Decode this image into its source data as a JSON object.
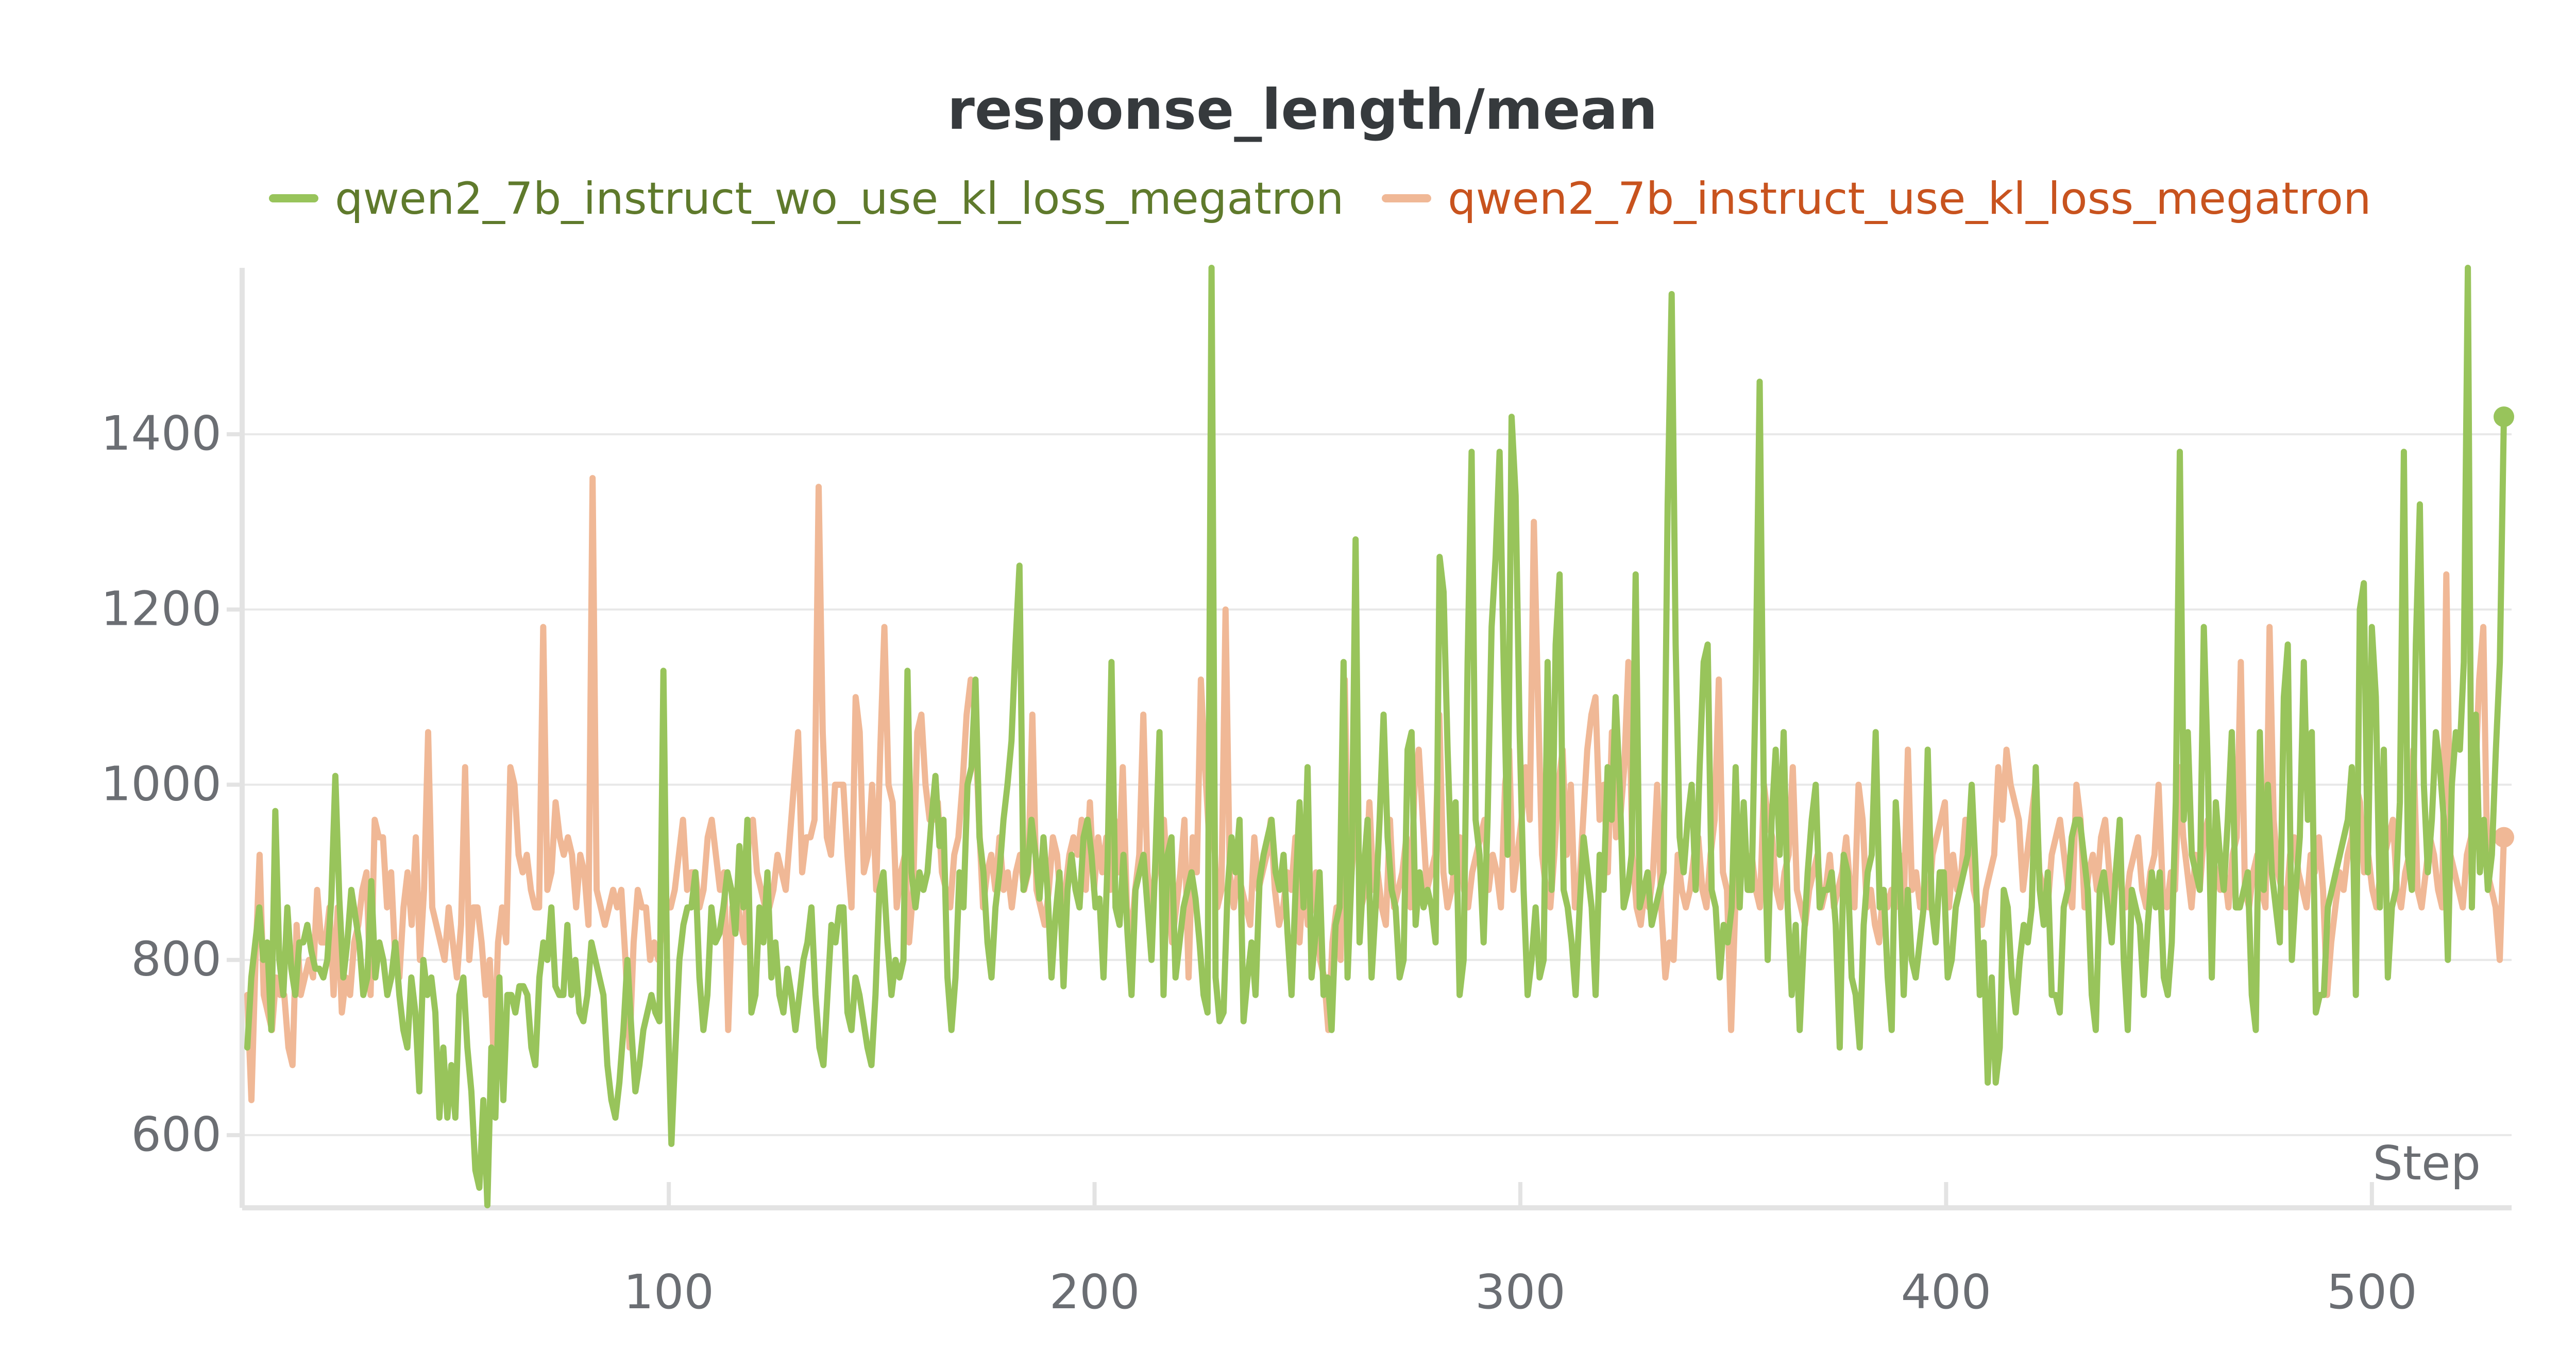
{
  "chart_data": {
    "type": "line",
    "title": "response_length/mean",
    "xlabel": "Step",
    "ylabel": "",
    "xlim": [
      1,
      531
    ],
    "ylim": [
      520,
      1590
    ],
    "x_ticks": [
      100,
      200,
      300,
      400,
      500
    ],
    "y_ticks": [
      600,
      800,
      1000,
      1200,
      1400
    ],
    "grid": true,
    "legend_position": "top",
    "series": [
      {
        "name": "qwen2_7b_instruct_wo_use_kl_loss_megatron",
        "color": "#98c45b",
        "legend_text_color": "#5f7a2c",
        "end_marker": true,
        "values": [
          700,
          780,
          820,
          860,
          800,
          820,
          720,
          970,
          800,
          760,
          860,
          790,
          760,
          820,
          820,
          840,
          810,
          790,
          790,
          780,
          800,
          870,
          1010,
          870,
          780,
          820,
          880,
          850,
          820,
          760,
          780,
          890,
          780,
          820,
          800,
          760,
          780,
          820,
          760,
          720,
          700,
          780,
          740,
          650,
          800,
          760,
          780,
          740,
          620,
          700,
          620,
          680,
          620,
          760,
          780,
          700,
          650,
          560,
          540,
          640,
          520,
          700,
          620,
          780,
          640,
          760,
          760,
          740,
          770,
          770,
          760,
          700,
          680,
          780,
          820,
          800,
          860,
          770,
          760,
          760,
          840,
          760,
          800,
          740,
          730,
          760,
          820,
          800,
          780,
          760,
          680,
          640,
          620,
          660,
          720,
          800,
          720,
          650,
          680,
          720,
          740,
          760,
          740,
          730,
          1130,
          760,
          590,
          700,
          800,
          840,
          860,
          860,
          900,
          780,
          720,
          760,
          860,
          820,
          830,
          860,
          900,
          880,
          830,
          930,
          860,
          960,
          740,
          760,
          860,
          820,
          900,
          780,
          820,
          760,
          740,
          790,
          760,
          720,
          760,
          800,
          820,
          860,
          760,
          700,
          680,
          760,
          840,
          820,
          860,
          860,
          740,
          720,
          780,
          760,
          730,
          700,
          680,
          760,
          880,
          900,
          820,
          760,
          800,
          780,
          800,
          1130,
          900,
          860,
          900,
          880,
          900,
          960,
          1010,
          930,
          960,
          780,
          720,
          780,
          900,
          860,
          1000,
          1020,
          1120,
          940,
          900,
          820,
          780,
          860,
          900,
          960,
          1000,
          1050,
          1160,
          1250,
          880,
          900,
          960,
          920,
          870,
          940,
          880,
          780,
          850,
          900,
          770,
          880,
          920,
          880,
          860,
          940,
          960,
          920,
          860,
          870,
          780,
          910,
          1140,
          860,
          840,
          920,
          830,
          760,
          880,
          900,
          920,
          860,
          800,
          920,
          1060,
          760,
          920,
          940,
          780,
          820,
          860,
          880,
          900,
          870,
          820,
          760,
          740,
          1590,
          780,
          730,
          740,
          880,
          940,
          900,
          960,
          730,
          780,
          820,
          760,
          890,
          920,
          940,
          960,
          900,
          880,
          920,
          830,
          760,
          880,
          980,
          860,
          1020,
          780,
          830,
          900,
          760,
          780,
          720,
          840,
          860,
          1140,
          780,
          900,
          1280,
          820,
          900,
          960,
          780,
          860,
          960,
          1080,
          940,
          880,
          860,
          780,
          800,
          1040,
          1060,
          840,
          900,
          860,
          880,
          860,
          820,
          1260,
          1220,
          1040,
          900,
          980,
          760,
          800,
          1140,
          1380,
          960,
          920,
          820,
          960,
          1180,
          1260,
          1380,
          1140,
          920,
          1420,
          1330,
          1060,
          880,
          760,
          800,
          860,
          780,
          800,
          1140,
          880,
          1160,
          1240,
          880,
          860,
          820,
          760,
          860,
          940,
          900,
          860,
          760,
          920,
          880,
          1020,
          960,
          1100,
          1000,
          860,
          880,
          920,
          1240,
          860,
          880,
          900,
          840,
          860,
          880,
          900,
          1320,
          1560,
          1160,
          940,
          900,
          960,
          1000,
          880,
          1020,
          1140,
          1160,
          880,
          860,
          780,
          840,
          820,
          860,
          1020,
          860,
          980,
          880,
          880,
          1120,
          1460,
          1000,
          800,
          960,
          1040,
          920,
          1060,
          860,
          760,
          840,
          720,
          820,
          900,
          960,
          1000,
          860,
          880,
          880,
          900,
          840,
          700,
          920,
          900,
          780,
          760,
          700,
          840,
          900,
          920,
          1060,
          860,
          880,
          780,
          720,
          980,
          900,
          760,
          880,
          800,
          780,
          820,
          860,
          1040,
          860,
          820,
          900,
          900,
          780,
          800,
          860,
          880,
          900,
          920,
          1000,
          900,
          760,
          820,
          660,
          780,
          660,
          700,
          880,
          860,
          780,
          740,
          800,
          840,
          820,
          860,
          1020,
          880,
          840,
          900,
          760,
          760,
          740,
          860,
          880,
          940,
          960,
          960,
          920,
          880,
          760,
          720,
          880,
          900,
          860,
          820,
          900,
          960,
          800,
          720,
          880,
          860,
          840,
          760,
          840,
          900,
          860,
          900,
          780,
          760,
          820,
          980,
          1380,
          960,
          1060,
          920,
          900,
          880,
          1180,
          1020,
          780,
          980,
          920,
          880,
          960,
          1060,
          860,
          860,
          880,
          900,
          760,
          720,
          1060,
          880,
          1000,
          900,
          860,
          820,
          1100,
          1160,
          800,
          880,
          940,
          1140,
          960,
          1060,
          740,
          760,
          760,
          860,
          880,
          900,
          920,
          940,
          960,
          1020,
          760,
          1200,
          1230,
          900,
          1180,
          1100,
          860,
          1040,
          780,
          860,
          880,
          980,
          1380,
          920,
          880,
          1160,
          1320,
          1000,
          900,
          960,
          1060,
          1020,
          960,
          800,
          1000,
          1060,
          1040,
          1140,
          1590,
          860,
          1080,
          900,
          960,
          880,
          920,
          1040,
          1140,
          1420
        ]
      },
      {
        "name": "qwen2_7b_instruct_use_kl_loss_megatron",
        "color": "#f0b896",
        "legend_text_color": "#c8531e",
        "end_marker": true,
        "values": [
          760,
          640,
          800,
          920,
          760,
          740,
          720,
          780,
          760,
          760,
          700,
          680,
          840,
          760,
          780,
          800,
          780,
          880,
          820,
          820,
          860,
          760,
          860,
          740,
          780,
          760,
          820,
          840,
          880,
          900,
          760,
          960,
          940,
          940,
          860,
          900,
          800,
          780,
          860,
          900,
          840,
          940,
          800,
          880,
          1060,
          860,
          840,
          820,
          800,
          860,
          820,
          780,
          840,
          1020,
          800,
          860,
          860,
          820,
          760,
          800,
          680,
          820,
          860,
          820,
          1020,
          1000,
          920,
          900,
          920,
          880,
          860,
          860,
          1180,
          880,
          900,
          980,
          940,
          920,
          940,
          920,
          860,
          920,
          900,
          840,
          1350,
          880,
          860,
          840,
          860,
          880,
          860,
          880,
          800,
          700,
          820,
          880,
          860,
          860,
          800,
          820,
          800,
          840,
          860,
          860,
          880,
          920,
          960,
          880,
          900,
          900,
          860,
          880,
          940,
          960,
          920,
          880,
          900,
          720,
          860,
          880,
          840,
          820,
          940,
          960,
          900,
          880,
          860,
          860,
          880,
          920,
          900,
          880,
          940,
          1000,
          1060,
          900,
          940,
          940,
          960,
          1340,
          1060,
          940,
          920,
          1000,
          1000,
          1000,
          920,
          860,
          1100,
          1060,
          900,
          920,
          1000,
          880,
          1040,
          1180,
          1000,
          980,
          860,
          900,
          920,
          820,
          880,
          1060,
          1080,
          1000,
          960,
          960,
          980,
          900,
          880,
          860,
          920,
          940,
          1000,
          1080,
          1120,
          1080,
          960,
          860,
          900,
          920,
          880,
          940,
          880,
          900,
          860,
          900,
          920,
          880,
          900,
          1080,
          880,
          860,
          840,
          880,
          940,
          920,
          860,
          880,
          920,
          940,
          920,
          960,
          880,
          980,
          880,
          940,
          900,
          940,
          880,
          960,
          900,
          1020,
          860,
          820,
          880,
          920,
          1080,
          900,
          860,
          900,
          940,
          960,
          880,
          820,
          860,
          900,
          960,
          780,
          940,
          900,
          1120,
          1020,
          940,
          960,
          860,
          880,
          1200,
          900,
          860,
          900,
          880,
          860,
          840,
          940,
          880,
          900,
          920,
          960,
          880,
          840,
          860,
          900,
          880,
          940,
          820,
          900,
          840,
          860,
          900,
          800,
          780,
          720,
          820,
          860,
          800,
          1120,
          860,
          920,
          960,
          860,
          880,
          980,
          880,
          900,
          860,
          840,
          960,
          860,
          880,
          900,
          940,
          860,
          1000,
          1040,
          960,
          880,
          900,
          920,
          1080,
          900,
          860,
          880,
          920,
          940,
          880,
          860,
          900,
          920,
          940,
          960,
          880,
          920,
          900,
          860,
          1000,
          1040,
          880,
          920,
          960,
          1020,
          960,
          1300,
          1100,
          920,
          880,
          860,
          920,
          1000,
          1040,
          920,
          1000,
          860,
          880,
          960,
          1040,
          1080,
          1100,
          960,
          1000,
          900,
          1060,
          940,
          960,
          1020,
          1140,
          920,
          860,
          840,
          880,
          860,
          900,
          1000,
          860,
          780,
          820,
          800,
          920,
          880,
          860,
          880,
          920,
          940,
          880,
          860,
          920,
          960,
          1120,
          900,
          880,
          720,
          860,
          920,
          940,
          900,
          920,
          880,
          860,
          1000,
          960,
          940,
          880,
          860,
          900,
          920,
          1020,
          880,
          860,
          840,
          880,
          900,
          920,
          860,
          880,
          920,
          860,
          880,
          900,
          940,
          880,
          860,
          1000,
          960,
          860,
          880,
          840,
          820,
          880,
          860,
          880,
          860,
          920,
          860,
          1040,
          880,
          900,
          860,
          880,
          860,
          920,
          940,
          960,
          980,
          860,
          920,
          880,
          900,
          960,
          940,
          880,
          860,
          840,
          880,
          900,
          920,
          1020,
          960,
          1040,
          1000,
          980,
          960,
          880,
          920,
          960,
          1000,
          900,
          880,
          860,
          920,
          940,
          960,
          920,
          880,
          860,
          1000,
          960,
          860,
          900,
          920,
          880,
          940,
          960,
          900,
          860,
          920,
          880,
          860,
          900,
          920,
          940,
          880,
          860,
          900,
          920,
          1000,
          880,
          860,
          900,
          880,
          1020,
          940,
          900,
          860,
          920,
          880,
          940,
          960,
          920,
          900,
          880,
          900,
          860,
          920,
          940,
          1140,
          880,
          860,
          900,
          920,
          880,
          860,
          1180,
          960,
          900,
          880,
          860,
          920,
          940,
          900,
          880,
          860,
          920,
          900,
          940,
          880,
          760,
          820,
          860,
          900,
          880,
          920,
          940,
          1000,
          980,
          900,
          920,
          880,
          860,
          900,
          920,
          940,
          960,
          880,
          860,
          900,
          920,
          1040,
          880,
          860,
          900,
          940,
          920,
          880,
          860,
          1240,
          920,
          900,
          880,
          860,
          920,
          940,
          1000,
          1120,
          1180,
          900,
          880,
          860,
          800,
          940
        ]
      }
    ]
  }
}
